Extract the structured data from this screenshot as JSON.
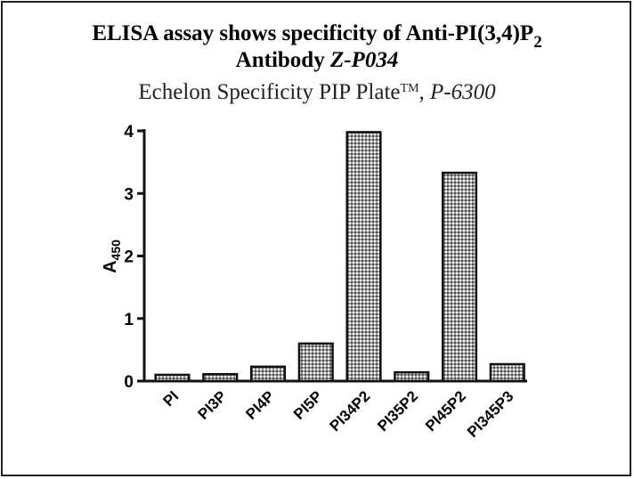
{
  "chart_data": {
    "type": "bar",
    "title": {
      "line1": "ELISA assay shows specificity of Anti-PI(3,4)P",
      "line1_sub": "2",
      "line2": "Antibody",
      "line2_italic": "Z-P034"
    },
    "subtitle": {
      "text": "Echelon Specificity PIP Plate",
      "sup": "TM",
      "sep": ",",
      "italic": "P-6300"
    },
    "y_label": {
      "text": "A",
      "sub": "450"
    },
    "categories": [
      "PI",
      "PI3P",
      "PI4P",
      "PI5P",
      "PI34P2",
      "PI35P2",
      "PI45P2",
      "PI345P3"
    ],
    "values": [
      0.1,
      0.11,
      0.23,
      0.6,
      3.98,
      0.14,
      3.33,
      0.27
    ],
    "color": "#9a9a9a",
    "ylim": [
      0,
      4
    ],
    "yticks": [
      0,
      1,
      2,
      3,
      4
    ],
    "grid": false
  }
}
